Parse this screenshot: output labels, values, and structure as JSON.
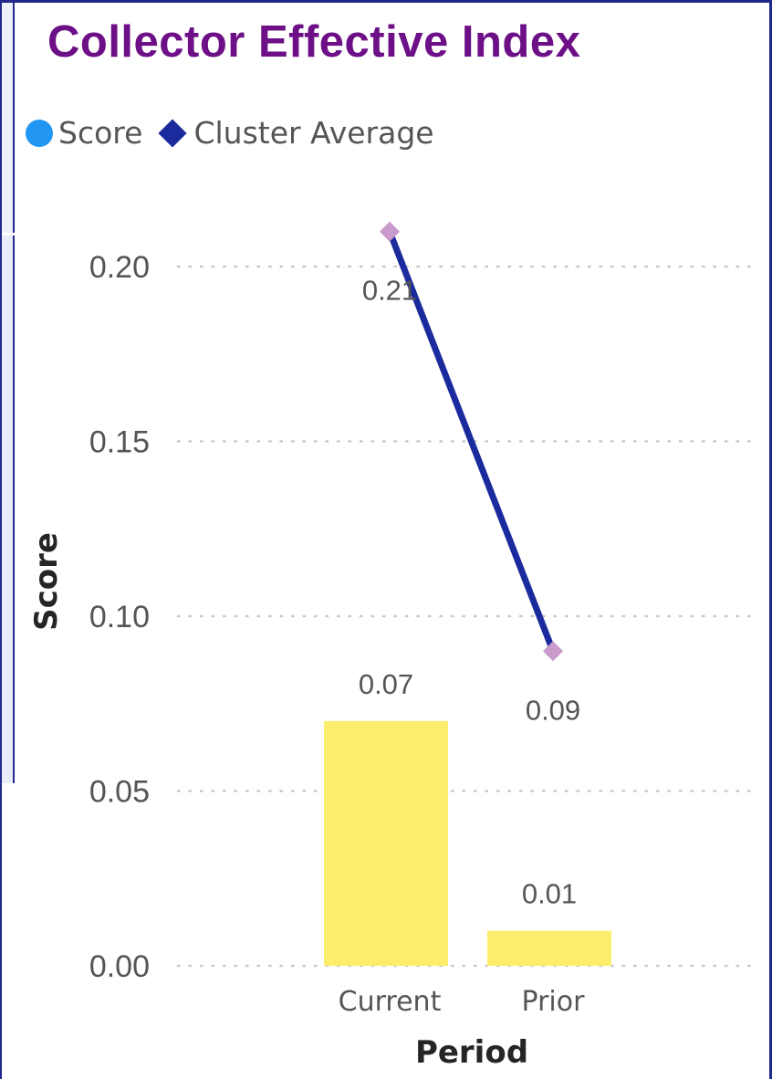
{
  "chart_data": {
    "type": "bar",
    "title": "Collector Effective Index",
    "categories": [
      "Current",
      "Prior"
    ],
    "series": [
      {
        "name": "Score",
        "kind": "bar",
        "values": [
          0.07,
          0.01
        ],
        "color": "#fded6c"
      },
      {
        "name": "Cluster Average",
        "kind": "line",
        "values": [
          0.21,
          0.09
        ],
        "color": "#1b2a9c",
        "marker_color": "#c99acb"
      }
    ],
    "data_labels": {
      "Score": [
        "0.07",
        "0.01"
      ],
      "Cluster Average": [
        "0.21",
        "0.09"
      ]
    },
    "xlabel": "Period",
    "ylabel": "Score",
    "ylim": [
      0,
      0.2
    ],
    "yticks": [
      "0.00",
      "0.05",
      "0.10",
      "0.15",
      "0.20"
    ],
    "grid": true,
    "legend_position": "top-left"
  },
  "legend": {
    "items": [
      {
        "label": "Score",
        "shape": "circle",
        "color": "#2196f3"
      },
      {
        "label": "Cluster Average",
        "shape": "diamond",
        "color": "#1b2a9c"
      }
    ]
  }
}
